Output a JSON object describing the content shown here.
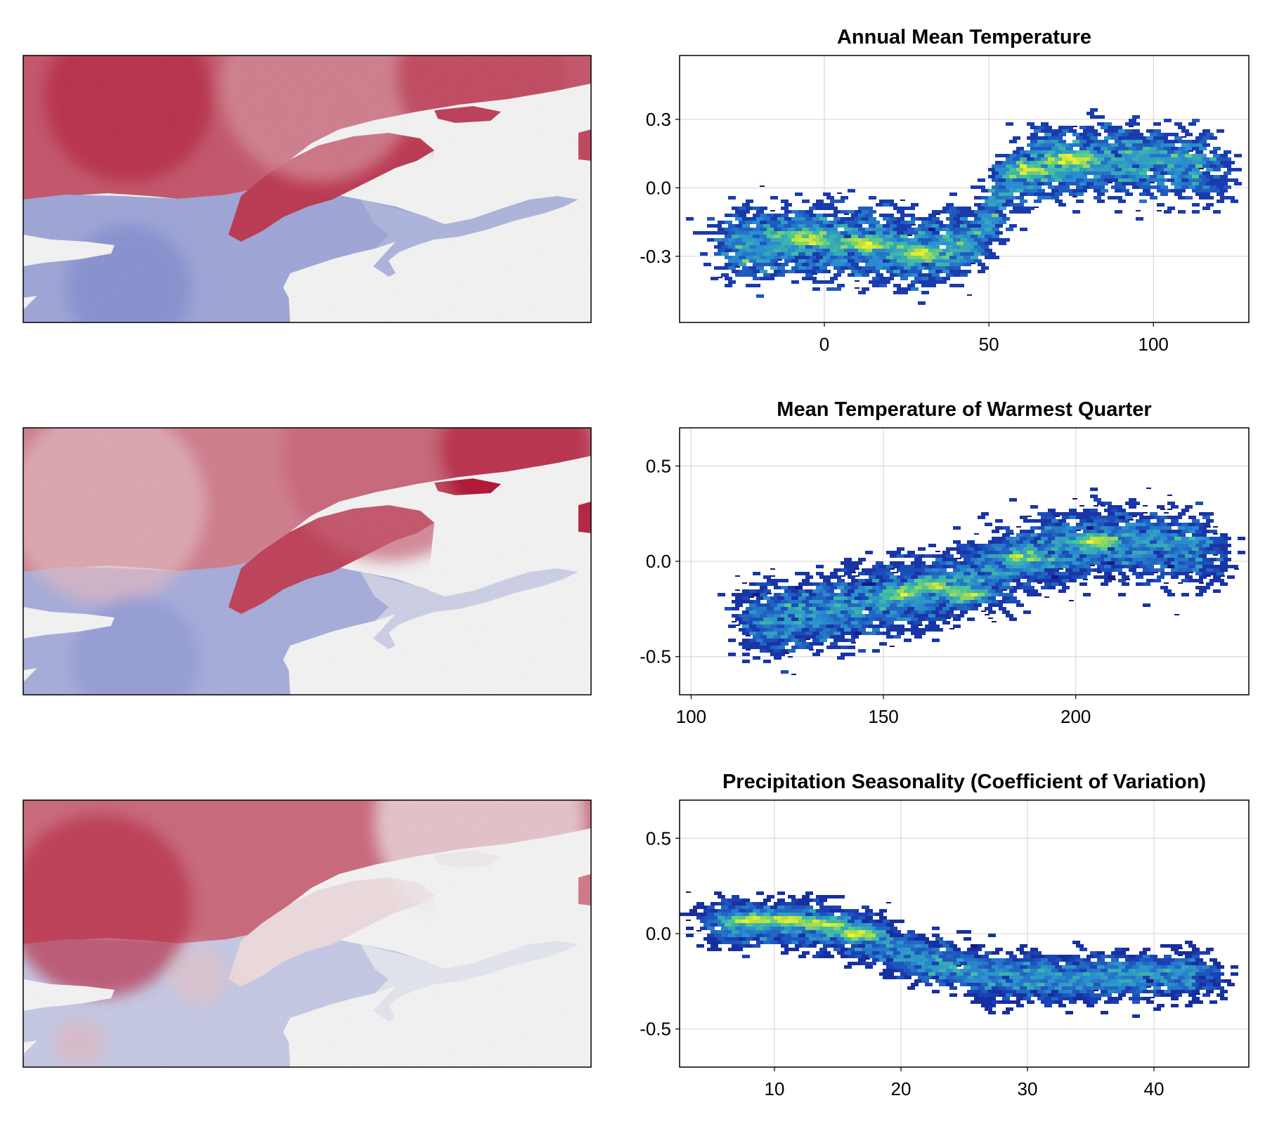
{
  "chart_data": [
    {
      "type": "heatmap",
      "role": "map",
      "colormap": [
        "#3b4cc0",
        "#ffffff",
        "#b40426"
      ]
    },
    {
      "type": "scatter",
      "role": "hexbin-density",
      "title": "Annual Mean Temperature",
      "xlabel": "",
      "ylabel": "",
      "xlim": [
        -44,
        129
      ],
      "ylim": [
        -0.59,
        0.58
      ],
      "xticks": [
        0,
        50,
        100
      ],
      "xtick_labels": [
        "0",
        "50",
        "100"
      ],
      "yticks": [
        -0.3,
        0.0,
        0.3
      ],
      "ytick_labels": [
        "-0.3",
        "0.0",
        "0.3"
      ],
      "grid": true,
      "colormap": [
        "#120b6e",
        "#1a3fb4",
        "#2a8fd0",
        "#45c49a",
        "#b9e042",
        "#f5f52a"
      ],
      "trend": [
        [
          -30,
          -0.26
        ],
        [
          -10,
          -0.23
        ],
        [
          10,
          -0.24
        ],
        [
          30,
          -0.28
        ],
        [
          45,
          -0.24
        ],
        [
          50,
          -0.12
        ],
        [
          55,
          0.02
        ],
        [
          65,
          0.1
        ],
        [
          80,
          0.12
        ],
        [
          100,
          0.11
        ],
        [
          118,
          0.09
        ]
      ],
      "hotspots": [
        [
          -5,
          -0.22
        ],
        [
          12,
          -0.25
        ],
        [
          28,
          -0.29
        ],
        [
          62,
          0.08
        ],
        [
          75,
          0.12
        ]
      ]
    },
    {
      "type": "heatmap",
      "role": "map",
      "colormap": [
        "#3b4cc0",
        "#ffffff",
        "#b40426"
      ]
    },
    {
      "type": "scatter",
      "role": "hexbin-density",
      "title": "Mean Temperature of Warmest Quarter",
      "xlabel": "",
      "ylabel": "",
      "xlim": [
        97,
        245
      ],
      "ylim": [
        -0.7,
        0.7
      ],
      "xticks": [
        100,
        150,
        200
      ],
      "xtick_labels": [
        "100",
        "150",
        "200"
      ],
      "yticks": [
        -0.5,
        0.0,
        0.5
      ],
      "ytick_labels": [
        "-0.5",
        "0.0",
        "0.5"
      ],
      "grid": true,
      "colormap": [
        "#120b6e",
        "#1a3fb4",
        "#2a8fd0",
        "#45c49a",
        "#b9e042",
        "#f5f52a"
      ],
      "trend": [
        [
          115,
          -0.32
        ],
        [
          130,
          -0.28
        ],
        [
          145,
          -0.22
        ],
        [
          160,
          -0.16
        ],
        [
          170,
          -0.12
        ],
        [
          180,
          -0.02
        ],
        [
          190,
          0.04
        ],
        [
          205,
          0.1
        ],
        [
          220,
          0.08
        ],
        [
          235,
          0.06
        ]
      ],
      "hotspots": [
        [
          155,
          -0.17
        ],
        [
          163,
          -0.13
        ],
        [
          172,
          -0.18
        ],
        [
          186,
          0.02
        ],
        [
          205,
          0.1
        ]
      ]
    },
    {
      "type": "heatmap",
      "role": "map",
      "colormap": [
        "#3b4cc0",
        "#ffffff",
        "#b40426"
      ]
    },
    {
      "type": "scatter",
      "role": "hexbin-density",
      "title": "Precipitation Seasonality (Coefficient of Variation)",
      "xlabel": "",
      "ylabel": "",
      "xlim": [
        2.5,
        47.5
      ],
      "ylim": [
        -0.7,
        0.7
      ],
      "xticks": [
        10,
        20,
        30,
        40
      ],
      "xtick_labels": [
        "10",
        "20",
        "30",
        "40"
      ],
      "yticks": [
        -0.5,
        0.0,
        0.5
      ],
      "ytick_labels": [
        "-0.5",
        "0.0",
        "0.5"
      ],
      "grid": true,
      "colormap": [
        "#120b6e",
        "#1a3fb4",
        "#2a8fd0",
        "#45c49a",
        "#b9e042",
        "#f5f52a"
      ],
      "trend": [
        [
          5,
          0.05
        ],
        [
          9,
          0.06
        ],
        [
          14,
          0.04
        ],
        [
          18,
          -0.04
        ],
        [
          22,
          -0.15
        ],
        [
          27,
          -0.22
        ],
        [
          33,
          -0.24
        ],
        [
          40,
          -0.22
        ],
        [
          44,
          -0.21
        ]
      ],
      "hotspots": [
        [
          8,
          0.07
        ],
        [
          11,
          0.07
        ],
        [
          14,
          0.05
        ],
        [
          16.5,
          0.0
        ]
      ]
    }
  ]
}
